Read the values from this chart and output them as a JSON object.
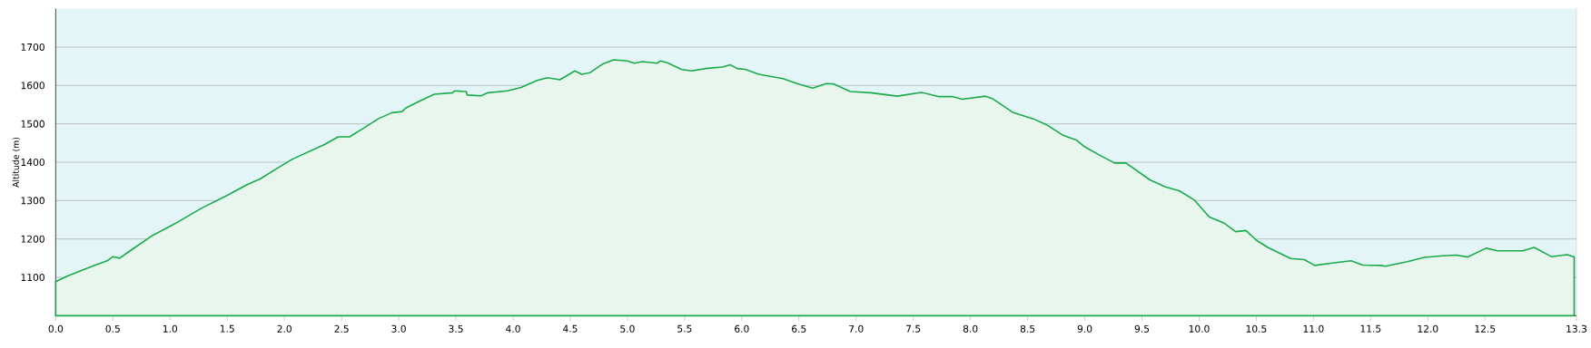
{
  "chart_data": {
    "type": "area",
    "ylabel": "Altitude (m)",
    "x": [
      0,
      0.1,
      0.33,
      0.45,
      0.5,
      0.56,
      0.63,
      0.84,
      1.05,
      1.28,
      1.49,
      1.67,
      1.79,
      1.98,
      2.07,
      2.35,
      2.47,
      2.57,
      2.7,
      2.82,
      2.94,
      3.03,
      3.06,
      3.18,
      3.31,
      3.47,
      3.49,
      3.59,
      3.6,
      3.72,
      3.78,
      3.95,
      4.07,
      4.21,
      4.3,
      4.41,
      4.54,
      4.6,
      4.67,
      4.79,
      4.88,
      5.0,
      5.06,
      5.13,
      5.26,
      5.29,
      5.35,
      5.47,
      5.56,
      5.68,
      5.83,
      5.9,
      5.96,
      6.03,
      6.15,
      6.36,
      6.49,
      6.62,
      6.74,
      6.8,
      6.95,
      7.13,
      7.36,
      7.57,
      7.72,
      7.84,
      7.93,
      8.13,
      8.19,
      8.37,
      8.55,
      8.67,
      8.81,
      8.93,
      9.0,
      9.15,
      9.26,
      9.36,
      9.57,
      9.7,
      9.83,
      9.96,
      10.09,
      10.22,
      10.32,
      10.41,
      10.5,
      10.6,
      10.8,
      10.92,
      11.01,
      11.18,
      11.33,
      11.43,
      11.59,
      11.63,
      11.82,
      11.97,
      12.13,
      12.25,
      12.35,
      12.51,
      12.61,
      12.83,
      12.93,
      13.08,
      13.22,
      13.28
    ],
    "series": [
      {
        "color": "#1aaa4a",
        "values": [
          1089,
          1103,
          1130,
          1143,
          1154,
          1150,
          1165,
          1208,
          1241,
          1281,
          1312,
          1341,
          1357,
          1392,
          1408,
          1446,
          1466,
          1466,
          1490,
          1513,
          1529,
          1532,
          1541,
          1559,
          1577,
          1581,
          1586,
          1584,
          1575,
          1573,
          1581,
          1586,
          1595,
          1613,
          1620,
          1615,
          1638,
          1629,
          1633,
          1657,
          1667,
          1664,
          1658,
          1662,
          1658,
          1664,
          1659,
          1642,
          1638,
          1644,
          1648,
          1654,
          1644,
          1642,
          1629,
          1618,
          1604,
          1593,
          1605,
          1604,
          1584,
          1581,
          1572,
          1582,
          1571,
          1571,
          1564,
          1572,
          1566,
          1530,
          1513,
          1497,
          1470,
          1457,
          1440,
          1415,
          1398,
          1398,
          1354,
          1336,
          1325,
          1301,
          1257,
          1241,
          1219,
          1222,
          1197,
          1178,
          1149,
          1146,
          1131,
          1138,
          1143,
          1132,
          1131,
          1129,
          1141,
          1152,
          1156,
          1158,
          1153,
          1176,
          1169,
          1169,
          1178,
          1154,
          1159,
          1153
        ]
      }
    ],
    "xlim": [
      0,
      13.3
    ],
    "ylim": [
      1000,
      1800
    ],
    "xticks": [
      {
        "value": 0,
        "label": "0.0"
      },
      0.5,
      {
        "value": 1,
        "label": "1.0"
      },
      1.5,
      {
        "value": 2,
        "label": "2.0"
      },
      2.5,
      {
        "value": 3,
        "label": "3.0"
      },
      3.5,
      {
        "value": 4,
        "label": "4.0"
      },
      4.5,
      {
        "value": 5,
        "label": "5.0"
      },
      5.5,
      {
        "value": 6,
        "label": "6.0"
      },
      6.5,
      {
        "value": 7,
        "label": "7.0"
      },
      7.5,
      {
        "value": 8,
        "label": "8.0"
      },
      8.5,
      {
        "value": 9,
        "label": "9.0"
      },
      9.5,
      {
        "value": 10,
        "label": "10.0"
      },
      10.5,
      {
        "value": 11,
        "label": "11.0"
      },
      11.5,
      {
        "value": 12,
        "label": "12.0"
      },
      12.5,
      13.3
    ],
    "yticks": [
      1100,
      1200,
      1300,
      1400,
      1500,
      1600,
      1700
    ],
    "grid": "y",
    "legend": false,
    "marker": "none",
    "line_style": "solid"
  }
}
